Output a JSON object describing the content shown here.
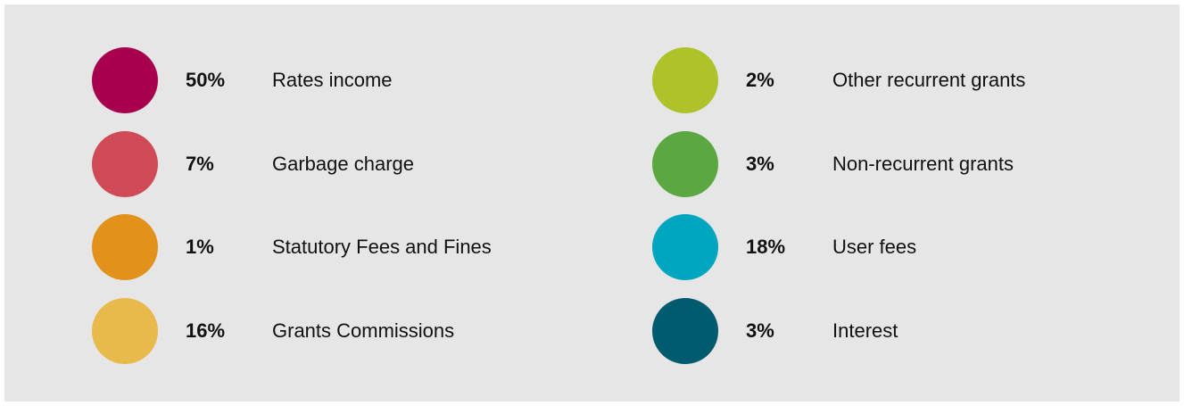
{
  "items": [
    {
      "percent": "50%",
      "label": "Rates income",
      "color": "#a8004f"
    },
    {
      "percent": "7%",
      "label": "Garbage charge",
      "color": "#cf4a56"
    },
    {
      "percent": "1%",
      "label": "Statutory Fees and Fines",
      "color": "#e2921b"
    },
    {
      "percent": "16%",
      "label": "Grants Commissions",
      "color": "#e8b94b"
    },
    {
      "percent": "2%",
      "label": "Other recurrent grants",
      "color": "#afc22a"
    },
    {
      "percent": "3%",
      "label": "Non-recurrent grants",
      "color": "#5aa83f"
    },
    {
      "percent": "18%",
      "label": "User fees",
      "color": "#00a5c0"
    },
    {
      "percent": "3%",
      "label": "Interest",
      "color": "#005a70"
    }
  ]
}
